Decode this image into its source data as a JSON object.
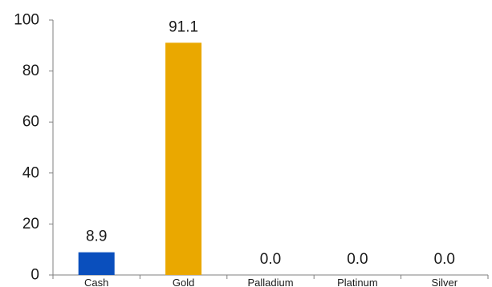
{
  "chart_data": {
    "type": "bar",
    "categories": [
      "Cash",
      "Gold",
      "Palladium",
      "Platinum",
      "Silver"
    ],
    "values": [
      8.9,
      91.1,
      0.0,
      0.0,
      0.0
    ],
    "data_labels": [
      "8.9",
      "91.1",
      "0.0",
      "0.0",
      "0.0"
    ],
    "colors": [
      "#0a4fbd",
      "#eaa800",
      "#eaa800",
      "#eaa800",
      "#eaa800"
    ],
    "ylim": [
      0,
      100
    ],
    "yticks": [
      0,
      20,
      40,
      60,
      80,
      100
    ],
    "ytick_labels": [
      "0",
      "20",
      "40",
      "60",
      "80",
      "100"
    ],
    "grid": false,
    "legend": "none"
  }
}
